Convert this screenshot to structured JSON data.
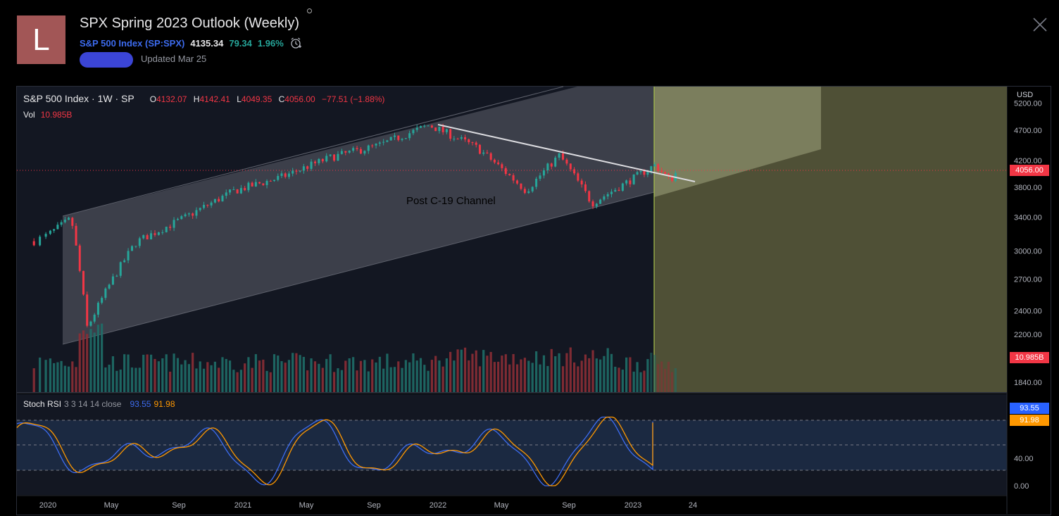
{
  "header": {
    "avatar_letter": "L",
    "title": "SPX Spring 2023 Outlook (Weekly)",
    "symbol_name": "S&P 500 Index",
    "symbol_ticker": "(SP:SPX)",
    "price": "4135.34",
    "change": "79.34",
    "change_pct": "1.96%",
    "updated": "Updated Mar 25"
  },
  "legend": {
    "symbol": "S&P 500 Index · 1W · SP",
    "o_label": "O",
    "o_value": "4132.07",
    "h_label": "H",
    "h_value": "4142.41",
    "l_label": "L",
    "l_value": "4049.35",
    "c_label": "C",
    "c_value": "4056.00",
    "change": "−77.51 (−1.88%)",
    "vol_label": "Vol",
    "vol_value": "10.985B"
  },
  "rsi_legend": {
    "name": "Stoch RSI",
    "params": "3 3 14 14 close",
    "k_value": "93.55",
    "d_value": "91.98"
  },
  "annotations": {
    "channel_label": "Post C-19 Channel"
  },
  "price_axis": {
    "currency": "USD",
    "last_price": "4056.00",
    "volume_badge": "10.985B",
    "rsi_k_badge": "93.55",
    "rsi_d_badge": "91.98"
  },
  "colors": {
    "up": "#26a69a",
    "down": "#f23645",
    "rsi_k": "#3d6cf0",
    "rsi_d": "#ff9800"
  },
  "chart_data": {
    "type": "candlestick",
    "interval": "1W",
    "price_axis_ticks": [
      "5200.00",
      "4700.00",
      "4200.00",
      "3800.00",
      "3400.00",
      "3000.00",
      "2700.00",
      "2400.00",
      "2200.00",
      "1840.00"
    ],
    "rsi_axis_ticks": [
      "40.00",
      "0.00"
    ],
    "time_axis_labels": [
      "2020",
      "May",
      "Sep",
      "2021",
      "May",
      "Sep",
      "2022",
      "May",
      "Sep",
      "2023",
      "24"
    ],
    "key_points": [
      {
        "date": "2019-12",
        "close": 3110
      },
      {
        "date": "2020-02",
        "close": 3380
      },
      {
        "date": "2020-03",
        "close": 2250
      },
      {
        "date": "2020-06",
        "close": 3100
      },
      {
        "date": "2020-09",
        "close": 3400
      },
      {
        "date": "2020-12",
        "close": 3750
      },
      {
        "date": "2021-03",
        "close": 3950
      },
      {
        "date": "2021-06",
        "close": 4250
      },
      {
        "date": "2021-09",
        "close": 4450
      },
      {
        "date": "2021-12",
        "close": 4790
      },
      {
        "date": "2022-03",
        "close": 4400
      },
      {
        "date": "2022-06",
        "close": 3750
      },
      {
        "date": "2022-08",
        "close": 4280
      },
      {
        "date": "2022-10",
        "close": 3580
      },
      {
        "date": "2022-12",
        "close": 3850
      },
      {
        "date": "2023-02",
        "close": 4130
      },
      {
        "date": "2023-03",
        "close": 3900
      },
      {
        "date": "2023-03-31",
        "close": 4056
      }
    ],
    "last_bar": {
      "open": 4132.07,
      "high": 4142.41,
      "low": 4049.35,
      "close": 4056.0,
      "change": -77.51,
      "change_pct": -1.88,
      "volume": "10.985B"
    },
    "stoch_rsi": {
      "k": 93.55,
      "d": 91.98
    }
  }
}
